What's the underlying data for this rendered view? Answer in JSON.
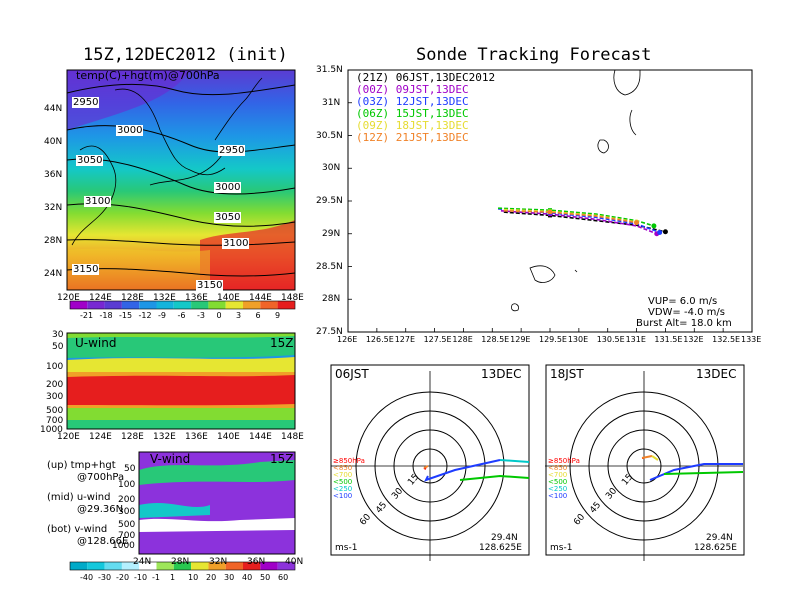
{
  "titles": {
    "left": "15Z,12DEC2012 (init)",
    "right": "Sonde Tracking Forecast"
  },
  "map_panel": {
    "label": "temp(C)+hgt(m)@700hPa",
    "x_ticks": [
      "120E",
      "124E",
      "128E",
      "132E",
      "136E",
      "140E",
      "144E",
      "148E"
    ],
    "y_ticks": [
      "24N",
      "28N",
      "32N",
      "36N",
      "40N",
      "44N"
    ],
    "contours": [
      "2950",
      "3000",
      "3050",
      "2950",
      "3000",
      "3100",
      "3050",
      "3100",
      "3150",
      "3150"
    ],
    "colorbar_labels": [
      "-21",
      "-18",
      "-15",
      "-12",
      "-9",
      "-6",
      "-3",
      "0",
      "3",
      "6",
      "9"
    ]
  },
  "u_panel": {
    "label": "U-wind",
    "time": "15Z",
    "y_ticks": [
      "30",
      "50",
      "100",
      "200",
      "300",
      "500",
      "700",
      "1000"
    ],
    "x_ticks": [
      "120E",
      "124E",
      "128E",
      "132E",
      "136E",
      "140E",
      "144E",
      "148E"
    ]
  },
  "v_panel": {
    "label": "V-wind",
    "time": "15Z",
    "y_ticks": [
      "50",
      "100",
      "200",
      "300",
      "500",
      "700",
      "1000"
    ],
    "x_ticks": [
      "24N",
      "28N",
      "32N",
      "36N",
      "40N"
    ],
    "colorbar_labels": [
      "-40",
      "-30",
      "-20",
      "-10",
      "-1",
      "1",
      "10",
      "20",
      "30",
      "40",
      "50",
      "60"
    ]
  },
  "notes": {
    "up_1": "(up) tmp+hgt",
    "up_2": "@700hPa",
    "mid_1": "(mid) u-wind",
    "mid_2": "@29.36N",
    "bot_1": "(bot) v-wind",
    "bot_2": "@128.66E"
  },
  "track_panel": {
    "x_ticks": [
      "126E",
      "126.5E",
      "127E",
      "127.5E",
      "128E",
      "128.5E",
      "129E",
      "129.5E",
      "130E",
      "130.5E",
      "131E",
      "131.5E",
      "132E",
      "132.5E",
      "133E"
    ],
    "y_ticks": [
      "27.5N",
      "28N",
      "28.5N",
      "29N",
      "29.5N",
      "30N",
      "30.5N",
      "31N",
      "31.5N"
    ],
    "legend": [
      {
        "code": "(21Z)",
        "label": "06JST,13DEC2012",
        "color": "#000000"
      },
      {
        "code": "(00Z)",
        "label": "09JST,13DEC",
        "color": "#a000c8"
      },
      {
        "code": "(03Z)",
        "label": "12JST,13DEC",
        "color": "#1e3cff"
      },
      {
        "code": "(06Z)",
        "label": "15JST,13DEC",
        "color": "#00c800"
      },
      {
        "code": "(09Z)",
        "label": "18JST,13DEC",
        "color": "#e6dc32"
      },
      {
        "code": "(12Z)",
        "label": "21JST,13DEC",
        "color": "#f08228"
      }
    ],
    "params": {
      "vup": "VUP= 6.0 m/s",
      "vdw": "VDW= -4.0 m/s",
      "burst": "Burst Alt= 18.0 km"
    }
  },
  "hodographs": [
    {
      "time": "06JST",
      "date": "13DEC",
      "lat": "29.4N",
      "lon": "128.625E",
      "unit": "ms-1",
      "rings": [
        "15",
        "30",
        "45",
        "60"
      ]
    },
    {
      "time": "18JST",
      "date": "13DEC",
      "lat": "29.4N",
      "lon": "128.625E",
      "unit": "ms-1",
      "rings": [
        "15",
        "30",
        "45",
        "60"
      ]
    }
  ],
  "hodo_legend": [
    {
      "label": "≥850hPa",
      "color": "#ff0000"
    },
    {
      "label": "<850",
      "color": "#f08228"
    },
    {
      "label": "<700",
      "color": "#e6dc32"
    },
    {
      "label": "<500",
      "color": "#00c800"
    },
    {
      "label": "<250",
      "color": "#00c8c8"
    },
    {
      "label": "<100",
      "color": "#1e3cff"
    }
  ],
  "chart_data": {
    "type": "line",
    "title": "Sonde Tracking Forecast",
    "xlim": [
      126,
      133
    ],
    "ylim": [
      27.5,
      31.5
    ],
    "series": [
      {
        "name": "06JST,13DEC2012",
        "x": [
          128.7,
          129.5,
          130.3,
          131.0,
          131.5
        ],
        "y": [
          29.33,
          29.28,
          29.2,
          29.13,
          29.03
        ]
      },
      {
        "name": "09JST,13DEC",
        "x": [
          128.65,
          129.5,
          130.3,
          131.0,
          131.35
        ],
        "y": [
          29.35,
          29.3,
          29.22,
          29.12,
          29.0
        ]
      },
      {
        "name": "12JST,13DEC",
        "x": [
          128.6,
          129.5,
          130.3,
          131.0,
          131.4
        ],
        "y": [
          29.38,
          29.32,
          29.25,
          29.15,
          29.02
        ]
      },
      {
        "name": "15JST,13DEC",
        "x": [
          128.6,
          129.5,
          130.3,
          131.0,
          131.3
        ],
        "y": [
          29.39,
          29.36,
          29.3,
          29.2,
          29.12
        ]
      },
      {
        "name": "18JST,13DEC",
        "x": [
          128.7,
          129.5,
          130.3,
          131.0
        ],
        "y": [
          29.37,
          29.34,
          29.28,
          29.18
        ]
      },
      {
        "name": "21JST,13DEC",
        "x": [
          128.7,
          129.5,
          130.3,
          131.0
        ],
        "y": [
          29.35,
          29.33,
          29.27,
          29.17
        ]
      }
    ]
  }
}
